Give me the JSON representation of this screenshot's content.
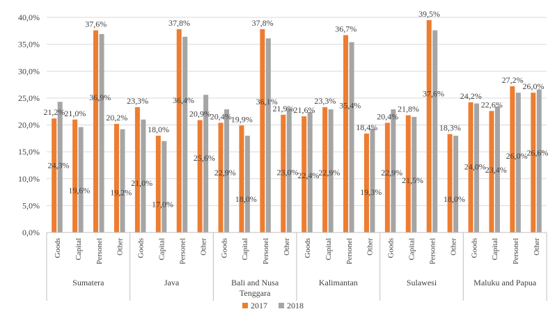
{
  "chart_data": {
    "type": "bar",
    "title": "",
    "xlabel": "",
    "ylabel": "",
    "ylim": [
      0,
      40
    ],
    "y_ticks": [
      "0,0%",
      "5,0%",
      "10,0%",
      "15,0%",
      "20,0%",
      "25,0%",
      "30,0%",
      "35,0%",
      "40,0%"
    ],
    "grid": true,
    "legend_position": "bottom",
    "groups": [
      {
        "name": "Sumatera",
        "categories": [
          "Goods",
          "Capital",
          "Personel",
          "Other"
        ]
      },
      {
        "name": "Java",
        "categories": [
          "Goods",
          "Capital",
          "Personel",
          "Other"
        ]
      },
      {
        "name": "Bali and Nusa Tenggara",
        "categories": [
          "Goods",
          "Capital",
          "Personel",
          "Other"
        ]
      },
      {
        "name": "Kalimantan",
        "categories": [
          "Goods",
          "Capital",
          "Personel",
          "Other"
        ]
      },
      {
        "name": "Sulawesi",
        "categories": [
          "Goods",
          "Capital",
          "Personel",
          "Other"
        ]
      },
      {
        "name": "Maluku and Papua",
        "categories": [
          "Goods",
          "Capital",
          "Personel",
          "Other"
        ]
      }
    ],
    "series": [
      {
        "name": "2017",
        "color": "#ed7d31",
        "values": [
          21.2,
          21.0,
          37.6,
          20.2,
          23.3,
          18.0,
          37.8,
          20.9,
          20.4,
          19.9,
          37.8,
          21.9,
          21.6,
          23.3,
          36.7,
          18.4,
          20.4,
          21.8,
          39.5,
          18.3,
          24.2,
          22.6,
          27.2,
          26.0
        ],
        "labels": [
          "21,2%",
          "21,0%",
          "37,6%",
          "20,2%",
          "23,3%",
          "18,0%",
          "37,8%",
          "20,9%",
          "20,4%",
          "19,9%",
          "37,8%",
          "21,9%",
          "21,6%",
          "23,3%",
          "36,7%",
          "18,4%",
          "20,4%",
          "21,8%",
          "39,5%",
          "18,3%",
          "24,2%",
          "22,6%",
          "27,2%",
          "26,0%"
        ]
      },
      {
        "name": "2018",
        "color": "#a5a5a5",
        "values": [
          24.3,
          19.6,
          36.9,
          19.2,
          21.0,
          17.0,
          36.4,
          25.6,
          22.9,
          18.0,
          36.1,
          23.0,
          22.4,
          22.9,
          35.4,
          19.3,
          22.9,
          21.5,
          37.6,
          18.0,
          24.0,
          23.4,
          26.0,
          26.6
        ],
        "labels": [
          "24,3%",
          "19,6%",
          "36,9%",
          "19,2%",
          "21,0%",
          "17,0%",
          "36,4%",
          "25,6%",
          "22,9%",
          "18,0%",
          "36,1%",
          "23,0%",
          "22,4%",
          "22,9%",
          "35,4%",
          "19,3%",
          "22,9%",
          "21,5%",
          "37,6%",
          "18,0%",
          "24,0%",
          "23,4%",
          "26,0%",
          "26,6%"
        ]
      }
    ]
  }
}
